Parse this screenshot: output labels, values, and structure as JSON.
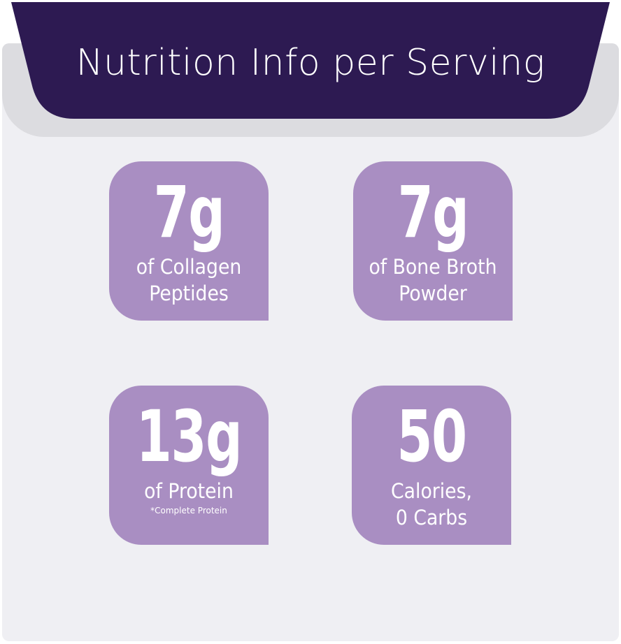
{
  "header": {
    "title": "Nutrition Info per Serving"
  },
  "colors": {
    "header_bg": "#2d1a52",
    "card_bg": "#efeff3",
    "tile_bg": "#a98ec2",
    "text": "#ffffff"
  },
  "tiles": [
    {
      "value": "7g",
      "line1": "of Collagen",
      "line2": "Peptides",
      "note": ""
    },
    {
      "value": "7g",
      "line1": "of Bone Broth",
      "line2": "Powder",
      "note": ""
    },
    {
      "value": "13g",
      "line1": "of Protein",
      "line2": "",
      "note": "*Complete Protein"
    },
    {
      "value": "50",
      "line1": "Calories,",
      "line2": "0 Carbs",
      "note": ""
    }
  ]
}
